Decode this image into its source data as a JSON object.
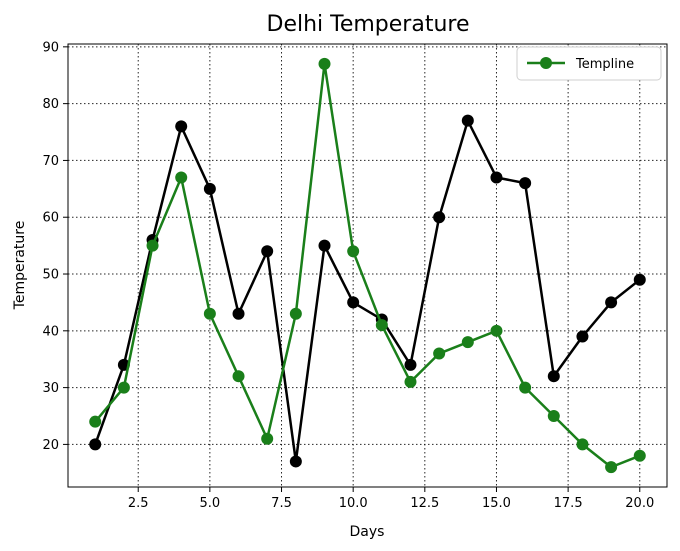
{
  "chart_data": {
    "type": "line",
    "title": "Delhi Temperature",
    "xlabel": "Days",
    "ylabel": "Temperature",
    "xlim": [
      0.05,
      20.95
    ],
    "ylim": [
      12.5,
      90.5
    ],
    "xticks": [
      "2.5",
      "5.0",
      "7.5",
      "10.0",
      "12.5",
      "15.0",
      "17.5",
      "20.0"
    ],
    "yticks": [
      "20",
      "30",
      "40",
      "50",
      "60",
      "70",
      "80",
      "90"
    ],
    "grid": true,
    "legend": {
      "placement": "top-right",
      "entries": [
        "Templine"
      ]
    },
    "x": [
      1,
      2,
      3,
      4,
      5,
      6,
      7,
      8,
      9,
      10,
      11,
      12,
      13,
      14,
      15,
      16,
      17,
      18,
      19,
      20
    ],
    "series": [
      {
        "color": "#000000",
        "values": [
          20,
          34,
          56,
          76,
          65,
          43,
          54,
          17,
          55,
          45,
          42,
          34,
          60,
          77,
          67,
          66,
          32,
          39,
          45,
          49
        ]
      },
      {
        "name": "Templine",
        "color": "#1a7f1a",
        "values": [
          24,
          30,
          55,
          67,
          43,
          32,
          21,
          43,
          87,
          54,
          41,
          31,
          36,
          38,
          40,
          30,
          25,
          20,
          16,
          18
        ]
      }
    ]
  }
}
